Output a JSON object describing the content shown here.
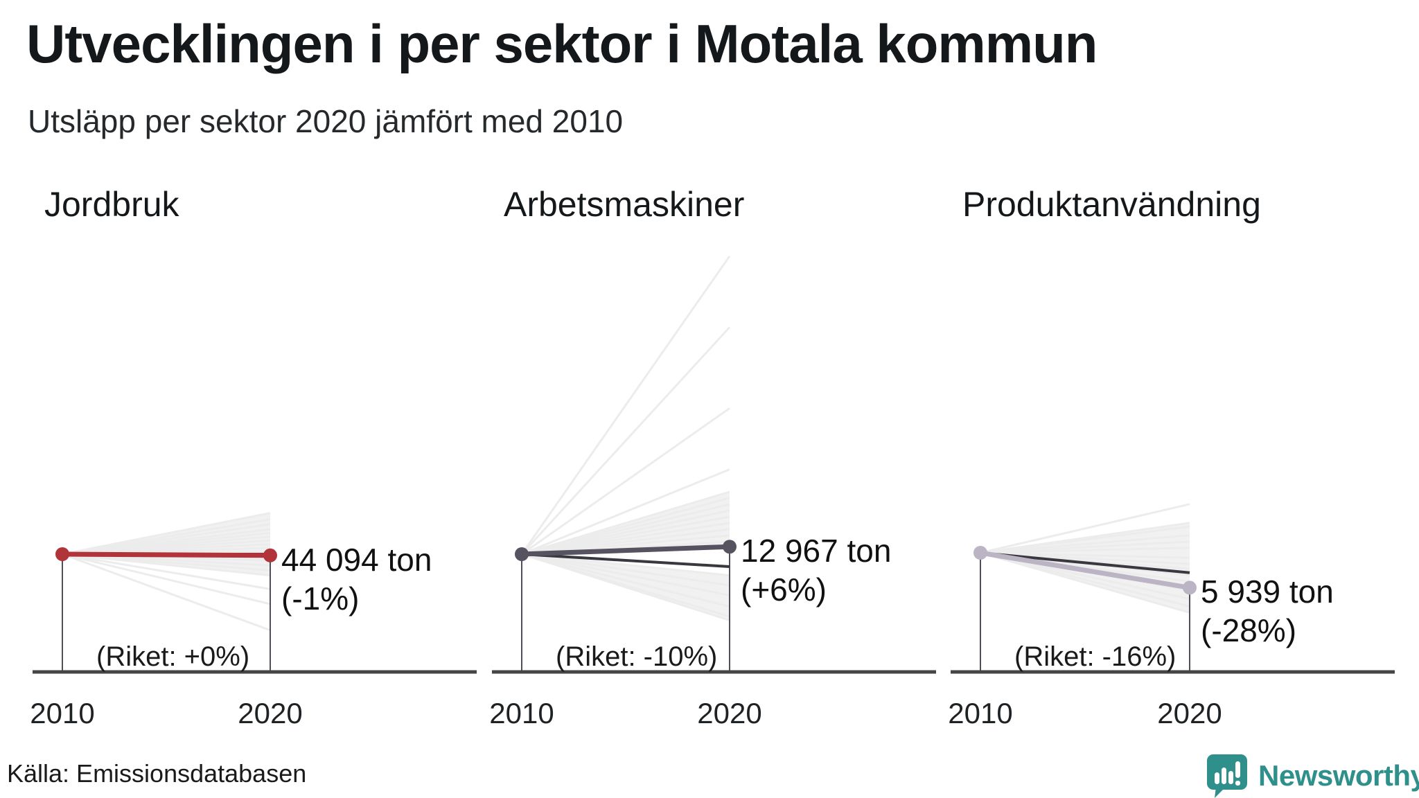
{
  "header": {
    "title": "Utvecklingen i per sektor i Motala kommun",
    "subtitle": "Utsläpp per sektor 2020 jämfört med 2010"
  },
  "source": {
    "label": "Källa: Emissionsdatabasen"
  },
  "logo": {
    "text": "Newsworthy",
    "color": "#2f908b"
  },
  "colors": {
    "text": "#15181a",
    "fan_lines": "#ececec",
    "riket_line": "#3a373e",
    "baseline": "#454545",
    "stems": "#514e5a"
  },
  "chart_data": [
    {
      "type": "line",
      "sector": "Jordbruk",
      "years": [
        "2010",
        "2020"
      ],
      "value_2020": 44094,
      "value_label": "44 094 ton",
      "change_pct": -1,
      "change_label": "(-1%)",
      "riket_pct": 0,
      "riket_label": "(Riket: +0%)",
      "line_color": "#b0343a",
      "background_trends_pct": [
        33,
        28,
        24,
        20,
        17,
        14,
        11,
        8,
        5,
        2,
        -2,
        -5,
        -9,
        -13,
        -17,
        -28,
        -40,
        -61
      ],
      "wedges_pct": [
        [
          33,
          -17
        ]
      ]
    },
    {
      "type": "line",
      "sector": "Arbetsmaskiner",
      "years": [
        "2010",
        "2020"
      ],
      "value_2020": 12967,
      "value_label": "12 967 ton",
      "change_pct": 6,
      "change_label": "(+6%)",
      "riket_pct": -10,
      "riket_label": "(Riket: -10%)",
      "line_color": "#57525f",
      "background_trends_pct": [
        239,
        182,
        117,
        68,
        50,
        45,
        40,
        35,
        30,
        25,
        20,
        15,
        10,
        -17,
        -25,
        -33,
        -42,
        -50,
        -53
      ],
      "wedges_pct": [
        [
          50,
          8
        ],
        [
          -17,
          -53
        ]
      ]
    },
    {
      "type": "line",
      "sector": "Produktanvändning",
      "years": [
        "2010",
        "2020"
      ],
      "value_2020": 5939,
      "value_label": "5 939 ton",
      "change_pct": -28,
      "change_label": "(-28%)",
      "riket_pct": -16,
      "riket_label": "(Riket: -16%)",
      "line_color": "#bab4c4",
      "background_trends_pct": [
        39,
        24,
        21,
        14,
        9,
        4,
        -4,
        -9,
        -13,
        -18,
        -23,
        -30,
        -37,
        -43,
        -48
      ],
      "wedges_pct": [
        [
          24,
          -48
        ]
      ]
    }
  ]
}
